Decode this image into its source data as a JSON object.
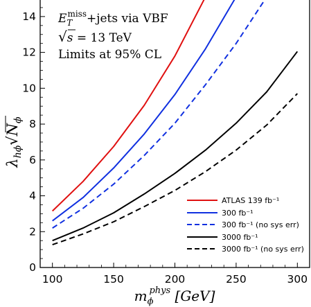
{
  "chart_data": {
    "type": "line",
    "annotations": {
      "line1_base": "E",
      "line1_sub": "T",
      "line1_sup": "miss",
      "line1_rest": "+jets via VBF",
      "line2_root": "√",
      "line2_s": "s",
      "line2_rest": " = 13 TeV",
      "line3": "Limits at 95% CL"
    },
    "xlabel": {
      "base": "m",
      "sub": "ϕ",
      "sup": "phys",
      "unit": " [GeV]"
    },
    "ylabel": {
      "lambda": "λ",
      "sub": "hϕ",
      "root": "√",
      "n": "N",
      "n_sub": "ϕ"
    },
    "xlim": [
      90,
      310
    ],
    "ylim": [
      0,
      15
    ],
    "xticks": [
      100,
      150,
      200,
      250,
      300
    ],
    "yticks": [
      0,
      2,
      4,
      6,
      8,
      10,
      12,
      14
    ],
    "x": [
      100,
      125,
      150,
      175,
      200,
      225,
      250,
      275,
      300
    ],
    "series": [
      {
        "name": "ATLAS 139 fb⁻¹",
        "color": "#e01010",
        "dash": "solid",
        "values": [
          3.15,
          4.8,
          6.75,
          9.05,
          11.8,
          15.1,
          null,
          null,
          null
        ]
      },
      {
        "name": "300 fb⁻¹",
        "color": "#1030e0",
        "dash": "solid",
        "values": [
          2.6,
          3.9,
          5.55,
          7.45,
          9.65,
          12.2,
          15.1,
          null,
          null
        ]
      },
      {
        "name": "300 fb⁻¹ (no sys err)",
        "color": "#1030e0",
        "dash": "dashed",
        "values": [
          2.2,
          3.3,
          4.65,
          6.25,
          8.05,
          10.2,
          12.5,
          15.1,
          null
        ]
      },
      {
        "name": "3000 fb⁻¹",
        "color": "#000000",
        "dash": "solid",
        "values": [
          1.5,
          2.2,
          3.05,
          4.1,
          5.25,
          6.55,
          8.05,
          9.8,
          12.05
        ]
      },
      {
        "name": "3000 fb⁻¹ (no sys err)",
        "color": "#000000",
        "dash": "dashed",
        "values": [
          1.27,
          1.87,
          2.55,
          3.4,
          4.3,
          5.35,
          6.55,
          7.95,
          9.7
        ]
      }
    ],
    "grid": false,
    "legend_position": "bottom-right"
  }
}
